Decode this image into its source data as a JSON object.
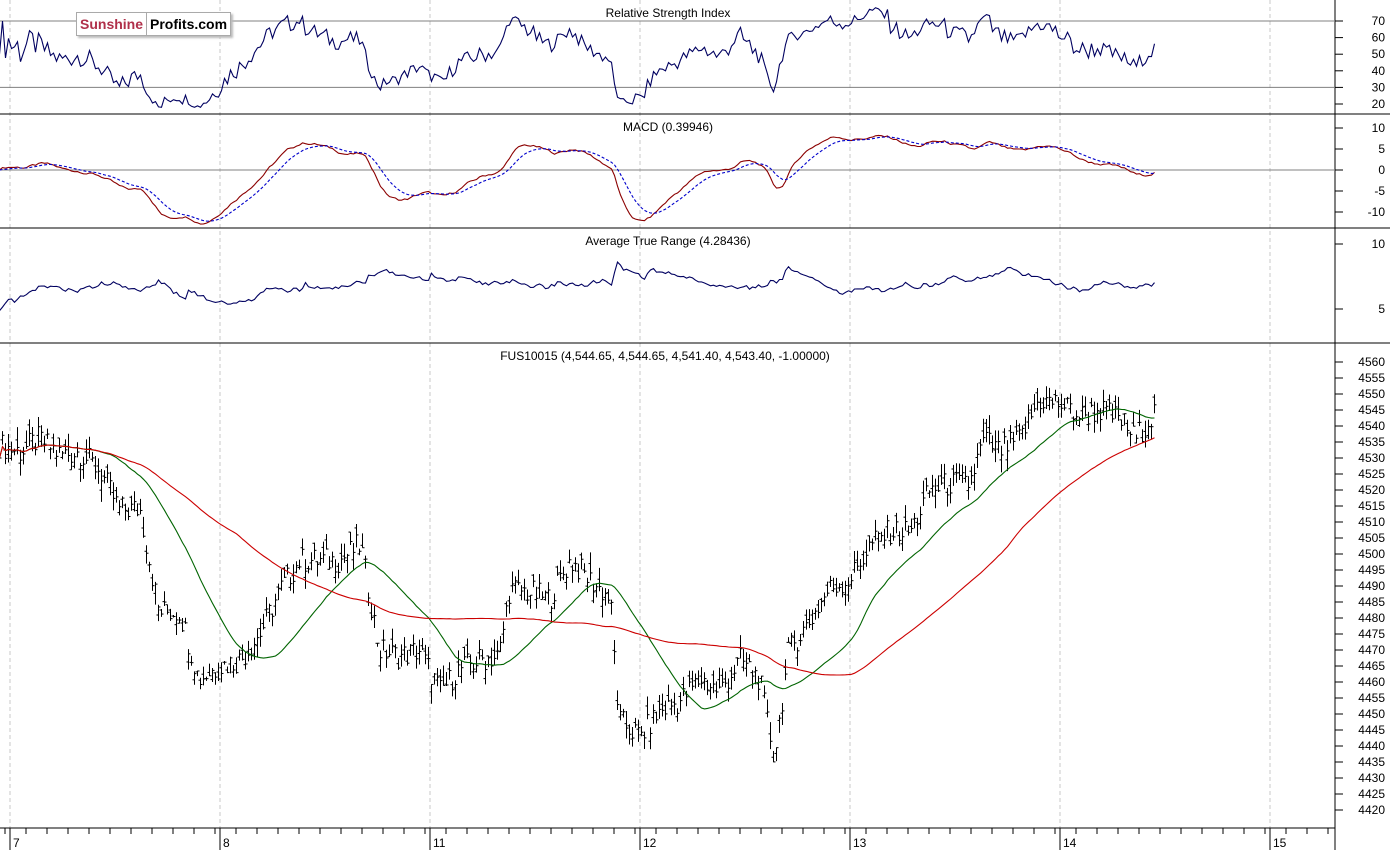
{
  "logo": {
    "part1": "Sunshine",
    "part2": "Profits.com"
  },
  "chart_data": [
    {
      "type": "line",
      "title": "Relative Strength Index",
      "ylim": [
        15,
        80
      ],
      "ticks": [
        20,
        30,
        40,
        50,
        60,
        70
      ],
      "reference_lines": [
        30,
        70
      ],
      "series": [
        {
          "name": "RSI",
          "color": "#000060"
        }
      ]
    },
    {
      "type": "line",
      "title": "MACD (0.39946)",
      "ylim": [
        -14,
        14
      ],
      "ticks": [
        -10,
        -5,
        0,
        5,
        10
      ],
      "reference_lines": [
        0
      ],
      "series": [
        {
          "name": "MACD",
          "color": "#8b0000"
        },
        {
          "name": "Signal",
          "color": "#0000cc",
          "dashed": true
        }
      ]
    },
    {
      "type": "line",
      "title": "Average True Range (4.28436)",
      "ylim": [
        2.5,
        10.5
      ],
      "ticks": [
        5,
        10
      ],
      "series": [
        {
          "name": "ATR",
          "color": "#000060"
        }
      ]
    },
    {
      "type": "bar-ohlc",
      "title": "FUS10015 (4,544.65, 4,544.65, 4,541.40, 4,543.40, -1.00000)",
      "ylim": [
        4415,
        4565
      ],
      "ticks": [
        4420,
        4425,
        4430,
        4435,
        4440,
        4445,
        4450,
        4455,
        4460,
        4465,
        4470,
        4475,
        4480,
        4485,
        4490,
        4495,
        4500,
        4505,
        4510,
        4515,
        4520,
        4525,
        4530,
        4535,
        4540,
        4545,
        4550,
        4555,
        4560
      ],
      "x_ticks": [
        "7",
        "8",
        "11",
        "12",
        "13",
        "14",
        "15"
      ],
      "close_keypoints_day_close": [
        [
          -0.05,
          4534
        ],
        [
          0.05,
          4532
        ],
        [
          0.14,
          4536
        ],
        [
          0.24,
          4531
        ],
        [
          0.33,
          4532
        ],
        [
          0.43,
          4526
        ],
        [
          0.52,
          4514
        ],
        [
          0.62,
          4514
        ],
        [
          0.71,
          4482
        ],
        [
          0.81,
          4482
        ],
        [
          0.9,
          4461
        ],
        [
          1.0,
          4465
        ],
        [
          1.1,
          4467
        ],
        [
          1.19,
          4475
        ],
        [
          1.29,
          4489
        ],
        [
          1.38,
          4498
        ],
        [
          1.48,
          4498
        ],
        [
          1.57,
          4498
        ],
        [
          1.67,
          4503
        ],
        [
          1.76,
          4470
        ],
        [
          1.86,
          4468
        ],
        [
          1.95,
          4470
        ],
        [
          2.05,
          4457
        ],
        [
          2.14,
          4464
        ],
        [
          2.24,
          4467
        ],
        [
          2.33,
          4468
        ],
        [
          2.38,
          4489
        ],
        [
          2.48,
          4488
        ],
        [
          2.57,
          4486
        ],
        [
          2.67,
          4498
        ],
        [
          2.76,
          4492
        ],
        [
          2.86,
          4486
        ],
        [
          2.9,
          4448
        ],
        [
          3.0,
          4443
        ],
        [
          3.1,
          4451
        ],
        [
          3.19,
          4454
        ],
        [
          3.29,
          4461
        ],
        [
          3.38,
          4457
        ],
        [
          3.48,
          4467
        ],
        [
          3.57,
          4461
        ],
        [
          3.64,
          4436
        ],
        [
          3.71,
          4470
        ],
        [
          3.81,
          4479
        ],
        [
          3.9,
          4489
        ],
        [
          4.0,
          4492
        ],
        [
          4.1,
          4503
        ],
        [
          4.19,
          4507
        ],
        [
          4.29,
          4507
        ],
        [
          4.38,
          4520
        ],
        [
          4.48,
          4522
        ],
        [
          4.57,
          4522
        ],
        [
          4.64,
          4536
        ],
        [
          4.71,
          4532
        ],
        [
          4.81,
          4536
        ],
        [
          4.9,
          4548
        ],
        [
          5.0,
          4547
        ],
        [
          5.1,
          4543
        ],
        [
          5.19,
          4545
        ],
        [
          5.29,
          4542
        ],
        [
          5.36,
          4536
        ],
        [
          5.46,
          4545
        ]
      ],
      "series": [
        {
          "name": "Price",
          "color": "#000"
        },
        {
          "name": "MA short",
          "color": "#006400"
        },
        {
          "name": "MA long",
          "color": "#cc0000"
        }
      ]
    }
  ]
}
